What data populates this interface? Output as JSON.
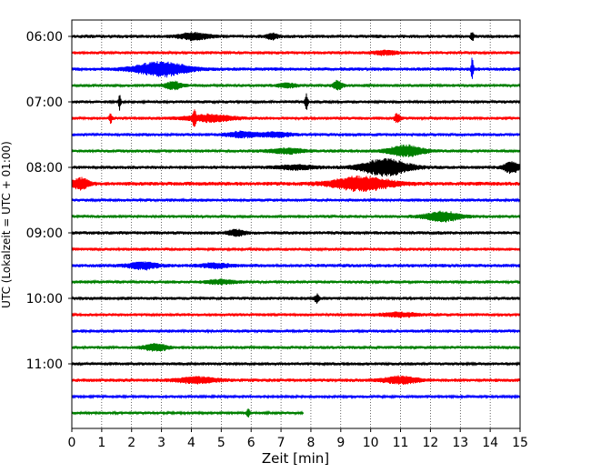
{
  "chart_data": {
    "type": "line",
    "subtype": "helicorder",
    "title": "",
    "xlabel": "Zeit  [min]",
    "ylabel": "UTC (Lokalzeit = UTC + 01:00)",
    "xlim": [
      0,
      15
    ],
    "x_ticks": [
      0,
      1,
      2,
      3,
      4,
      5,
      6,
      7,
      8,
      9,
      10,
      11,
      12,
      13,
      14,
      15
    ],
    "x_tick_labels": [
      "0",
      "1",
      "2",
      "3",
      "4",
      "5",
      "6",
      "7",
      "8",
      "9",
      "10",
      "11",
      "12",
      "13",
      "14",
      "15"
    ],
    "y_tick_labels": [
      "06:00",
      "07:00",
      "08:00",
      "09:00",
      "10:00",
      "11:00"
    ],
    "y_tick_rows": [
      0,
      4,
      8,
      12,
      16,
      20
    ],
    "grid": "vertical-dotted",
    "trace_colors": [
      "#000000",
      "#ff0000",
      "#0000ff",
      "#008000"
    ],
    "trace_minutes_per_row": 15,
    "last_trace_end_min": 7.75,
    "traces": [
      {
        "row": 0,
        "start": "06:00",
        "color": "#000000",
        "noise": 0.22,
        "events": [
          {
            "t": 4.1,
            "amp": 0.5,
            "w": 0.5
          },
          {
            "t": 13.4,
            "amp": 0.7,
            "w": 0.05
          },
          {
            "t": 6.7,
            "amp": 0.4,
            "w": 0.2
          }
        ]
      },
      {
        "row": 1,
        "start": "06:15",
        "color": "#ff0000",
        "noise": 0.2,
        "events": [
          {
            "t": 10.5,
            "amp": 0.3,
            "w": 0.4
          }
        ]
      },
      {
        "row": 2,
        "start": "06:30",
        "color": "#0000ff",
        "noise": 0.22,
        "events": [
          {
            "t": 3.0,
            "amp": 1.0,
            "w": 0.9
          },
          {
            "t": 13.4,
            "amp": 1.7,
            "w": 0.04
          }
        ]
      },
      {
        "row": 3,
        "start": "06:45",
        "color": "#008000",
        "noise": 0.2,
        "events": [
          {
            "t": 3.4,
            "amp": 0.5,
            "w": 0.3
          },
          {
            "t": 8.9,
            "amp": 0.7,
            "w": 0.15
          },
          {
            "t": 7.2,
            "amp": 0.3,
            "w": 0.3
          }
        ]
      },
      {
        "row": 4,
        "start": "07:00",
        "color": "#000000",
        "noise": 0.2,
        "events": [
          {
            "t": 1.6,
            "amp": 1.1,
            "w": 0.04
          },
          {
            "t": 7.85,
            "amp": 1.1,
            "w": 0.05
          }
        ]
      },
      {
        "row": 5,
        "start": "07:15",
        "color": "#ff0000",
        "noise": 0.2,
        "events": [
          {
            "t": 1.3,
            "amp": 0.7,
            "w": 0.05
          },
          {
            "t": 4.1,
            "amp": 1.2,
            "w": 0.05
          },
          {
            "t": 4.6,
            "amp": 0.5,
            "w": 0.8
          },
          {
            "t": 10.9,
            "amp": 0.7,
            "w": 0.1
          }
        ]
      },
      {
        "row": 6,
        "start": "07:30",
        "color": "#0000ff",
        "noise": 0.2,
        "events": [
          {
            "t": 5.7,
            "amp": 0.4,
            "w": 0.5
          },
          {
            "t": 6.8,
            "amp": 0.35,
            "w": 0.5
          }
        ]
      },
      {
        "row": 7,
        "start": "07:45",
        "color": "#008000",
        "noise": 0.2,
        "events": [
          {
            "t": 11.2,
            "amp": 0.8,
            "w": 0.6
          },
          {
            "t": 7.2,
            "amp": 0.35,
            "w": 0.6
          }
        ]
      },
      {
        "row": 8,
        "start": "08:00",
        "color": "#000000",
        "noise": 0.22,
        "events": [
          {
            "t": 10.5,
            "amp": 1.2,
            "w": 0.8
          },
          {
            "t": 14.7,
            "amp": 0.9,
            "w": 0.25
          },
          {
            "t": 7.5,
            "amp": 0.3,
            "w": 0.6
          }
        ]
      },
      {
        "row": 9,
        "start": "08:15",
        "color": "#ff0000",
        "noise": 0.25,
        "events": [
          {
            "t": 0.3,
            "amp": 0.8,
            "w": 0.3
          },
          {
            "t": 9.7,
            "amp": 1.0,
            "w": 1.0
          }
        ]
      },
      {
        "row": 10,
        "start": "08:30",
        "color": "#0000ff",
        "noise": 0.2,
        "events": []
      },
      {
        "row": 11,
        "start": "08:45",
        "color": "#008000",
        "noise": 0.2,
        "events": [
          {
            "t": 12.4,
            "amp": 0.7,
            "w": 0.6
          }
        ]
      },
      {
        "row": 12,
        "start": "09:00",
        "color": "#000000",
        "noise": 0.22,
        "events": [
          {
            "t": 5.5,
            "amp": 0.4,
            "w": 0.3
          }
        ]
      },
      {
        "row": 13,
        "start": "09:15",
        "color": "#ff0000",
        "noise": 0.2,
        "events": []
      },
      {
        "row": 14,
        "start": "09:30",
        "color": "#0000ff",
        "noise": 0.22,
        "events": [
          {
            "t": 2.4,
            "amp": 0.5,
            "w": 0.5
          },
          {
            "t": 4.8,
            "amp": 0.3,
            "w": 0.5
          }
        ]
      },
      {
        "row": 15,
        "start": "09:45",
        "color": "#008000",
        "noise": 0.2,
        "events": [
          {
            "t": 5.0,
            "amp": 0.3,
            "w": 0.5
          }
        ]
      },
      {
        "row": 16,
        "start": "10:00",
        "color": "#000000",
        "noise": 0.2,
        "events": [
          {
            "t": 8.2,
            "amp": 0.6,
            "w": 0.08
          }
        ]
      },
      {
        "row": 17,
        "start": "10:15",
        "color": "#ff0000",
        "noise": 0.2,
        "events": [
          {
            "t": 11.0,
            "amp": 0.3,
            "w": 0.6
          }
        ]
      },
      {
        "row": 18,
        "start": "10:30",
        "color": "#0000ff",
        "noise": 0.2,
        "events": []
      },
      {
        "row": 19,
        "start": "10:45",
        "color": "#008000",
        "noise": 0.2,
        "events": [
          {
            "t": 2.8,
            "amp": 0.5,
            "w": 0.4
          }
        ]
      },
      {
        "row": 20,
        "start": "11:00",
        "color": "#000000",
        "noise": 0.2,
        "events": []
      },
      {
        "row": 21,
        "start": "11:15",
        "color": "#ff0000",
        "noise": 0.22,
        "events": [
          {
            "t": 4.2,
            "amp": 0.4,
            "w": 0.7
          },
          {
            "t": 11.0,
            "amp": 0.5,
            "w": 0.6
          }
        ]
      },
      {
        "row": 22,
        "start": "11:30",
        "color": "#0000ff",
        "noise": 0.18,
        "events": []
      },
      {
        "row": 23,
        "start": "11:45",
        "color": "#008000",
        "noise": 0.18,
        "events": [
          {
            "t": 5.9,
            "amp": 0.8,
            "w": 0.05
          }
        ]
      }
    ]
  }
}
